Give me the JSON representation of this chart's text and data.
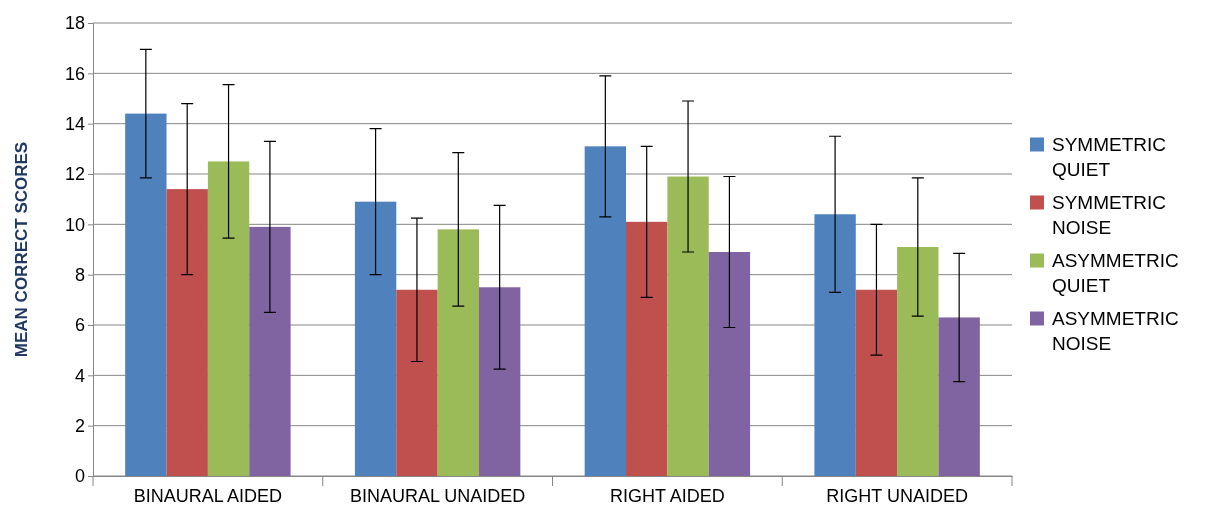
{
  "chart_data": {
    "type": "bar",
    "ylabel": "MEAN CORRECT SCORES",
    "categories": [
      "BINAURAL AIDED",
      "BINAURAL UNAIDED",
      "RIGHT AIDED",
      "RIGHT UNAIDED"
    ],
    "series": [
      {
        "name": "SYMMETRIC QUIET",
        "color": "#4f81bd",
        "values": [
          14.4,
          10.9,
          13.1,
          10.4
        ],
        "errors": [
          2.55,
          2.9,
          2.8,
          3.1
        ]
      },
      {
        "name": "SYMMETRIC NOISE",
        "color": "#c0504d",
        "values": [
          11.4,
          7.4,
          10.1,
          7.4
        ],
        "errors": [
          3.4,
          2.85,
          3.0,
          2.6
        ]
      },
      {
        "name": "ASYMMETRIC QUIET",
        "color": "#9bbb59",
        "values": [
          12.5,
          9.8,
          11.9,
          9.1
        ],
        "errors": [
          3.05,
          3.05,
          3.0,
          2.75
        ]
      },
      {
        "name": "ASYMMETRIC NOISE",
        "color": "#8064a2",
        "values": [
          9.9,
          7.5,
          8.9,
          6.3
        ],
        "errors": [
          3.4,
          3.25,
          3.0,
          2.55
        ]
      }
    ],
    "ylim": [
      0,
      18
    ],
    "yticks": [
      0,
      2,
      4,
      6,
      8,
      10,
      12,
      14,
      16,
      18
    ],
    "grid": "y",
    "legend": "right"
  }
}
